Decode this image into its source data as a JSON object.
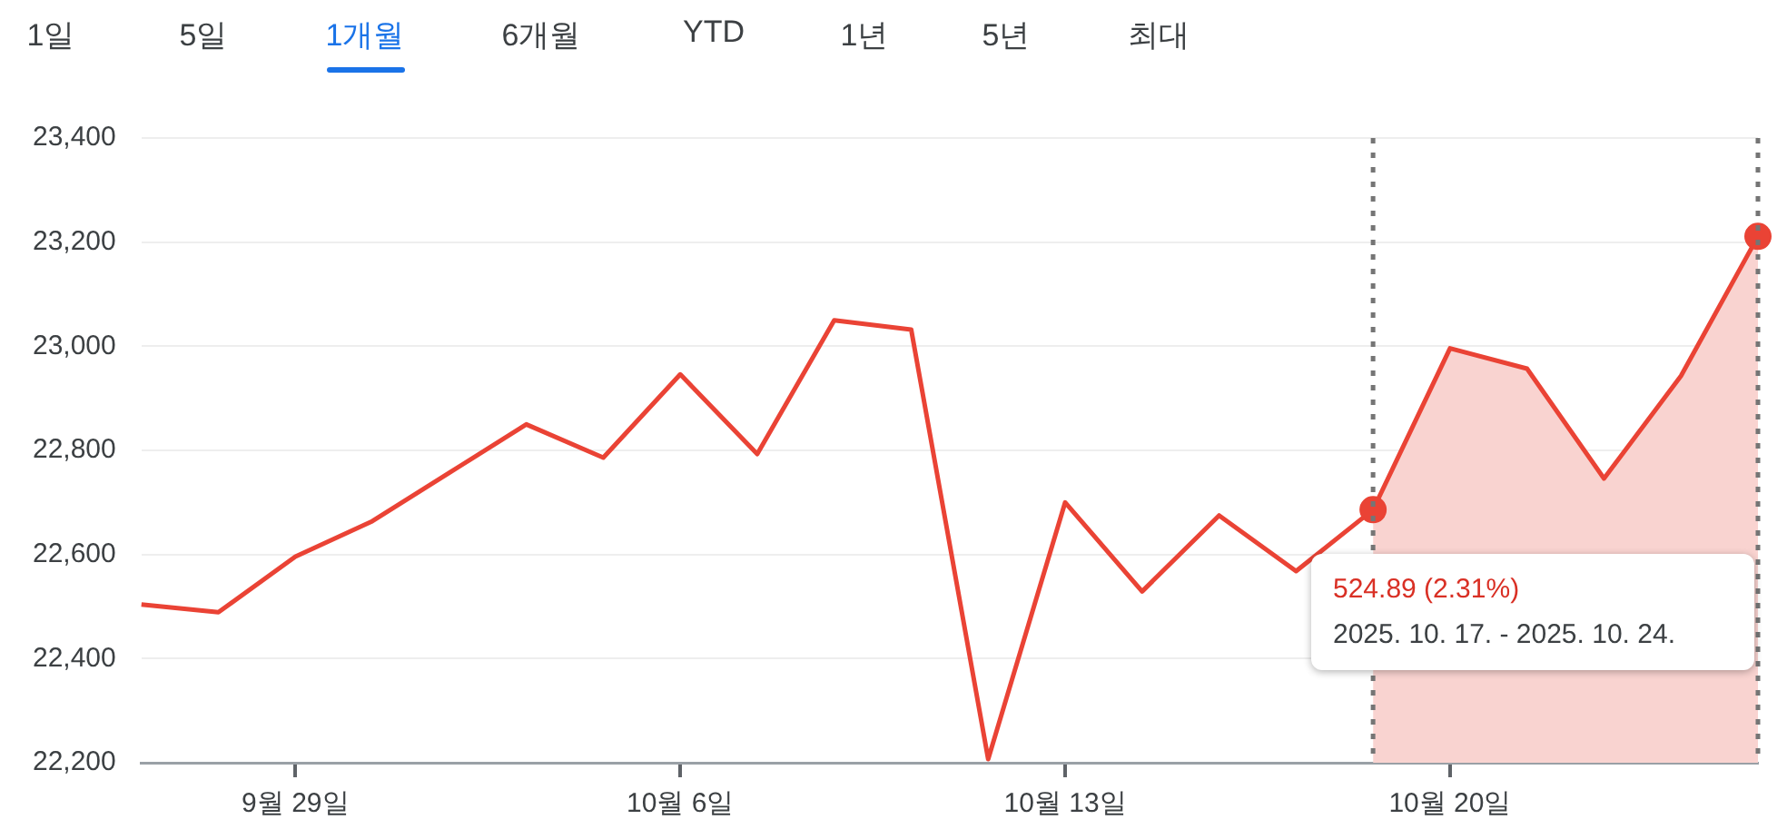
{
  "chart_data": {
    "type": "line",
    "categories": [
      null,
      null,
      "9월 29일",
      null,
      null,
      null,
      null,
      "10월 6일",
      null,
      null,
      null,
      null,
      "10월 13일",
      null,
      null,
      null,
      null,
      "10월 20일",
      null,
      null,
      null,
      null
    ],
    "series": [
      {
        "color": "#ea4335",
        "values": [
          22504,
          22489,
          22596,
          22664,
          22757,
          22850,
          22786,
          22946,
          22793,
          23050,
          23032,
          22207,
          22700,
          22529,
          22675,
          22568,
          22686,
          22996,
          22957,
          22746,
          22943,
          23211
        ]
      },
      {
        "type": "area",
        "color": "#f9d3d0",
        "values": [
          null,
          null,
          null,
          null,
          null,
          null,
          null,
          null,
          null,
          null,
          null,
          null,
          null,
          null,
          null,
          null,
          22686,
          22996,
          22957,
          22746,
          22943,
          23211
        ]
      },
      {
        "type": "scatter",
        "color": "#ea4335",
        "values": [
          null,
          null,
          null,
          null,
          null,
          null,
          null,
          null,
          null,
          null,
          null,
          null,
          null,
          null,
          null,
          null,
          22686,
          null,
          null,
          null,
          null,
          23211
        ]
      }
    ],
    "ylim": [
      22200,
      23400
    ],
    "yticks": [
      {
        "value": 22200,
        "label": "22,200"
      },
      {
        "value": 22400,
        "label": "22,400"
      },
      {
        "value": 22600,
        "label": "22,600"
      },
      {
        "value": 22800,
        "label": "22,800"
      },
      {
        "value": 23000,
        "label": "23,000"
      },
      {
        "value": 23200,
        "label": "23,200"
      },
      {
        "value": 23400,
        "label": "23,400"
      }
    ],
    "grid": "y",
    "legend": false,
    "annotations": [
      "1일",
      "5일",
      "1개월",
      "6개월",
      "YTD",
      "1년",
      "5년",
      "최대",
      "524.89 (2.31%)",
      "2025. 10. 17. - 2025. 10. 24."
    ]
  }
}
